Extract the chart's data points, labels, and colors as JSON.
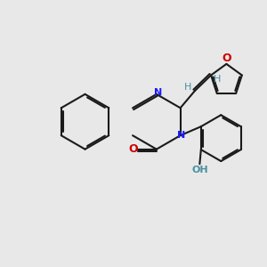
{
  "bg_color": "#e8e8e8",
  "bond_color": "#1a1a1a",
  "N_color": "#1a1aff",
  "O_color": "#cc0000",
  "H_color": "#4a8fa0",
  "lw": 1.5,
  "dbo": 0.07,
  "xlim": [
    0,
    10
  ],
  "ylim": [
    0,
    10
  ]
}
